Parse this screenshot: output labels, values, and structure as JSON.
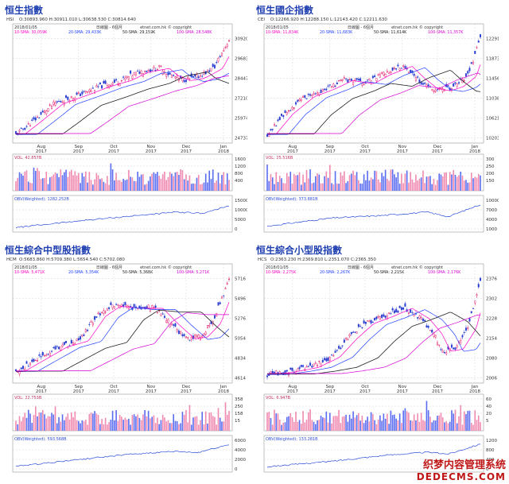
{
  "colors": {
    "up": "#e0005a",
    "down": "#2b3fd0",
    "sma1": "#ff00c8",
    "sma2": "#1f3fff",
    "sma3": "#202020",
    "sma4": "#d400d4",
    "vol_up": "#f08ab0",
    "vol_down": "#5a6cf0",
    "obv": "#2a4cd8",
    "grid": "#c8c8c8",
    "label": "#1f3fb0"
  },
  "watermark": {
    "line1": "织梦内容管理系统",
    "line2": "DEDECMS.COM"
  },
  "common": {
    "date": "2018/01/05",
    "freq": "日線圖 - 6個月",
    "copyright": "etnet.com.hk © copyright",
    "month_labels": [
      "Aug",
      "Sep",
      "Oct",
      "Nov",
      "Dec",
      "Jan"
    ],
    "year_labels": [
      "2017",
      "2017",
      "2017",
      "2017",
      "2017",
      "2018"
    ],
    "month_pos": [
      0.13,
      0.3,
      0.46,
      0.63,
      0.79,
      0.96
    ]
  },
  "panels": [
    {
      "title": "恒生指數",
      "code": "HSI",
      "ohlc": "O:30893.960 H:30911.010 L:30638.530 C:30814.640",
      "sma_labels": [
        "10-SMA: 30,059K",
        "20-SMA: 29,433K",
        "50-SMA: 29,159K",
        "100-SMA: 28,548K"
      ],
      "vol_label": "VOL: 42.857B",
      "obv_label": "OBV(Weighted): 1282.252B",
      "chart_data": {
        "type": "candlestick",
        "price_ticks": [
          24737,
          25974,
          27210,
          28447,
          29683,
          30920
        ],
        "vol_ticks": [
          400,
          800,
          1200,
          1600
        ],
        "obv_ticks": [
          0,
          5000,
          10000,
          15000
        ],
        "anchors": [
          [
            0,
            0.05
          ],
          [
            0.08,
            0.18
          ],
          [
            0.18,
            0.35
          ],
          [
            0.3,
            0.44
          ],
          [
            0.4,
            0.52
          ],
          [
            0.5,
            0.58
          ],
          [
            0.58,
            0.66
          ],
          [
            0.68,
            0.7
          ],
          [
            0.72,
            0.63
          ],
          [
            0.78,
            0.58
          ],
          [
            0.84,
            0.6
          ],
          [
            0.88,
            0.64
          ],
          [
            0.93,
            0.7
          ],
          [
            1,
            0.97
          ]
        ],
        "obv_anchors": [
          [
            0,
            0.05
          ],
          [
            0.3,
            0.3
          ],
          [
            0.55,
            0.48
          ],
          [
            0.75,
            0.62
          ],
          [
            0.88,
            0.58
          ],
          [
            1,
            0.85
          ]
        ],
        "ma_lag": [
          0.04,
          0.1,
          0.22,
          0.35
        ]
      }
    },
    {
      "title": "恒生國企指數",
      "code": "CEI",
      "ohlc": "O:12266.920 H:12288.150 L:12143.420 C:12211.630",
      "sma_labels": [
        "10-SMA: 11,834K",
        "20-SMA: 11,683K",
        "50-SMA: 11,614K",
        "100-SMA: 11,357K"
      ],
      "vol_label": "VOL: 25.516B",
      "obv_label": "OBV(Weighted): 373.881B",
      "chart_data": {
        "type": "candlestick",
        "price_ticks": [
          10203,
          10621,
          11038,
          11456,
          11873,
          12291
        ],
        "vol_ticks": [
          150,
          200,
          250,
          300
        ],
        "obv_ticks": [
          1000,
          4000,
          7000,
          10000
        ],
        "anchors": [
          [
            0,
            0.05
          ],
          [
            0.08,
            0.25
          ],
          [
            0.18,
            0.42
          ],
          [
            0.28,
            0.5
          ],
          [
            0.36,
            0.58
          ],
          [
            0.46,
            0.55
          ],
          [
            0.54,
            0.64
          ],
          [
            0.64,
            0.72
          ],
          [
            0.7,
            0.6
          ],
          [
            0.76,
            0.5
          ],
          [
            0.82,
            0.48
          ],
          [
            0.88,
            0.52
          ],
          [
            0.94,
            0.62
          ],
          [
            1,
            0.97
          ]
        ],
        "obv_anchors": [
          [
            0,
            0.1
          ],
          [
            0.3,
            0.4
          ],
          [
            0.55,
            0.5
          ],
          [
            0.75,
            0.62
          ],
          [
            0.85,
            0.45
          ],
          [
            1,
            0.9
          ]
        ],
        "ma_lag": [
          0.04,
          0.1,
          0.22,
          0.35
        ]
      }
    },
    {
      "title": "恒生綜合中型股指數",
      "code": "HCM",
      "ohlc": "O:5683.860 H:5709.380 L:5654.540 C:5702.080",
      "sma_labels": [
        "10-SMA: 5,471K",
        "20-SMA: 5,354K",
        "50-SMA: 5,368K",
        "100-SMA: 5,271K"
      ],
      "vol_label": "VOL: 22.753B",
      "obv_label": "OBV(Weighted): 593.568B",
      "chart_data": {
        "type": "candlestick",
        "price_ticks": [
          4614,
          4834,
          5054,
          5276,
          5496,
          5716
        ],
        "vol_ticks": [
          15,
          158,
          250,
          358
        ],
        "obv_ticks": [
          0,
          2000,
          4000,
          6000
        ],
        "anchors": [
          [
            0,
            0.08
          ],
          [
            0.1,
            0.2
          ],
          [
            0.2,
            0.32
          ],
          [
            0.3,
            0.38
          ],
          [
            0.38,
            0.62
          ],
          [
            0.45,
            0.72
          ],
          [
            0.55,
            0.7
          ],
          [
            0.65,
            0.7
          ],
          [
            0.72,
            0.55
          ],
          [
            0.8,
            0.4
          ],
          [
            0.86,
            0.42
          ],
          [
            0.92,
            0.55
          ],
          [
            1,
            0.97
          ]
        ],
        "obv_anchors": [
          [
            0,
            0.1
          ],
          [
            0.3,
            0.35
          ],
          [
            0.55,
            0.55
          ],
          [
            0.75,
            0.65
          ],
          [
            0.85,
            0.6
          ],
          [
            1,
            0.9
          ]
        ],
        "ma_lag": [
          0.04,
          0.1,
          0.22,
          0.35
        ]
      }
    },
    {
      "title": "恒生綜合小型股指數",
      "code": "HCS",
      "ohlc": "O:2363.230 H:2369.810 L:2351.070 C:2365.350",
      "sma_labels": [
        "10-SMA: 2,275K",
        "20-SMA: 2,267K",
        "50-SMA: 2,215K",
        "100-SMA: 2,176K"
      ],
      "vol_label": "VOL: 6.947B",
      "obv_label": "OBV(Weighted): 133.281B",
      "chart_data": {
        "type": "candlestick",
        "price_ticks": [
          2006,
          2080,
          2154,
          2228,
          2302,
          2376
        ],
        "vol_ticks": [
          5,
          20,
          40,
          60
        ],
        "obv_ticks": [
          0,
          400,
          800,
          1200
        ],
        "anchors": [
          [
            0,
            0.05
          ],
          [
            0.1,
            0.08
          ],
          [
            0.2,
            0.12
          ],
          [
            0.3,
            0.22
          ],
          [
            0.38,
            0.4
          ],
          [
            0.46,
            0.55
          ],
          [
            0.55,
            0.62
          ],
          [
            0.64,
            0.7
          ],
          [
            0.72,
            0.6
          ],
          [
            0.78,
            0.45
          ],
          [
            0.82,
            0.28
          ],
          [
            0.88,
            0.3
          ],
          [
            0.94,
            0.5
          ],
          [
            1,
            0.97
          ]
        ],
        "obv_anchors": [
          [
            0,
            0.08
          ],
          [
            0.3,
            0.28
          ],
          [
            0.55,
            0.5
          ],
          [
            0.75,
            0.62
          ],
          [
            0.85,
            0.55
          ],
          [
            1,
            0.92
          ]
        ],
        "ma_lag": [
          0.04,
          0.1,
          0.22,
          0.35
        ]
      }
    }
  ]
}
